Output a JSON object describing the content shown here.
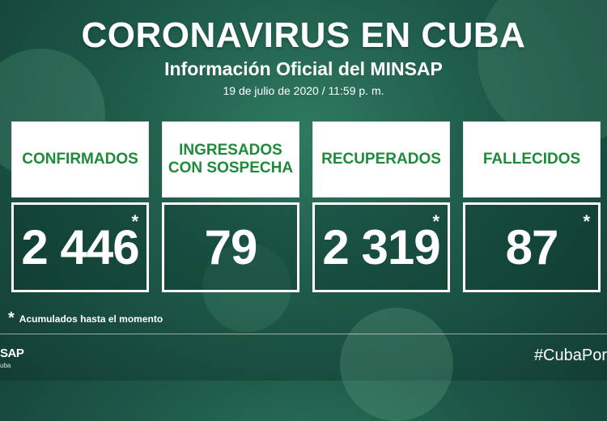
{
  "header": {
    "title": "CORONAVIRUS EN CUBA",
    "subtitle": "Información Oficial del MINSAP",
    "datetime": "19 de julio de 2020 / 11:59 p. m."
  },
  "cards": [
    {
      "label": "CONFIRMADOS",
      "value": "2 446",
      "asterisk": "*"
    },
    {
      "label": "INGRESADOS\nCON SOSPECHA",
      "value": "79",
      "asterisk": ""
    },
    {
      "label": "RECUPERADOS",
      "value": "2 319",
      "asterisk": "*"
    },
    {
      "label": "FALLECIDOS",
      "value": "87",
      "asterisk": "*"
    }
  ],
  "footnote": {
    "marker": "*",
    "text": "Acumulados hasta el momento"
  },
  "footer": {
    "logo": "SAP",
    "logo_sub": "uba",
    "hashtag": "#CubaPor"
  },
  "colors": {
    "label_green": "#1e8a3a",
    "bg_green": "#1e5a49"
  }
}
